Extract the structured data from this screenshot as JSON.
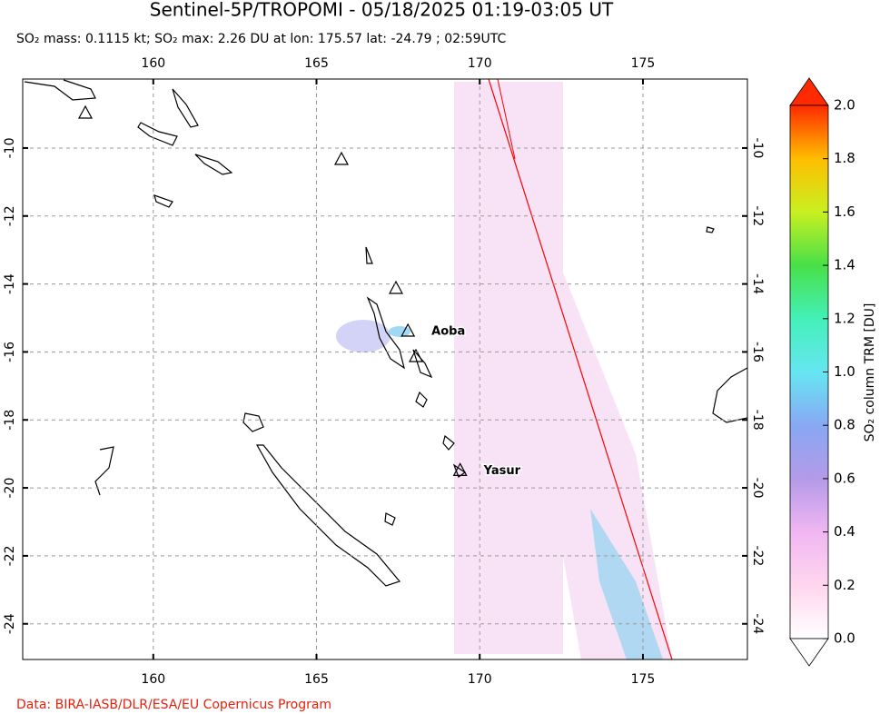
{
  "chart_data": {
    "type": "map",
    "title": "Sentinel-5P/TROPOMI - 05/18/2025 01:19-03:05 UT",
    "subtitle": "SO₂ mass: 0.1115 kt; SO₂ max: 2.26 DU at lon: 175.57 lat: -24.79 ; 02:59UTC",
    "xlim": [
      156,
      178.2
    ],
    "ylim": [
      -25.05,
      -7.97
    ],
    "xticks": [
      160,
      165,
      170,
      175
    ],
    "yticks": [
      -10,
      -12,
      -14,
      -16,
      -18,
      -20,
      -22,
      -24
    ],
    "grid": true,
    "volcanoes": [
      {
        "name": "Aoba",
        "lon": 167.8,
        "lat": -15.4
      },
      {
        "name": "Yasur",
        "lon": 169.4,
        "lat": -19.5
      }
    ],
    "colorbar": {
      "label": "SO₂ column TRM [DU]",
      "clim": [
        0,
        2
      ],
      "colormap": [
        "#ffffff",
        "#ffd6ee",
        "#f0b6f2",
        "#b49ae8",
        "#88a8f4",
        "#66e6f2",
        "#44f0b8",
        "#48e048",
        "#c8f020",
        "#ffbe00",
        "#ff2a00"
      ],
      "ticks": [
        {
          "value": 0,
          "label": "0.0"
        },
        {
          "value": 0.2,
          "label": "0.2"
        },
        {
          "value": 0.4,
          "label": "0.4"
        },
        {
          "value": 0.6,
          "label": "0.6"
        },
        {
          "value": 0.8,
          "label": "0.8"
        },
        {
          "value": 1,
          "label": "1.0"
        },
        {
          "value": 1.2,
          "label": "1.2"
        },
        {
          "value": 1.4,
          "label": "1.4"
        },
        {
          "value": 1.6,
          "label": "1.6"
        },
        {
          "value": 1.8,
          "label": "1.8"
        },
        {
          "value": 2,
          "label": "2.0"
        }
      ]
    },
    "credit": "Data: BIRA-IASB/DLR/ESA/EU Copernicus Program"
  }
}
